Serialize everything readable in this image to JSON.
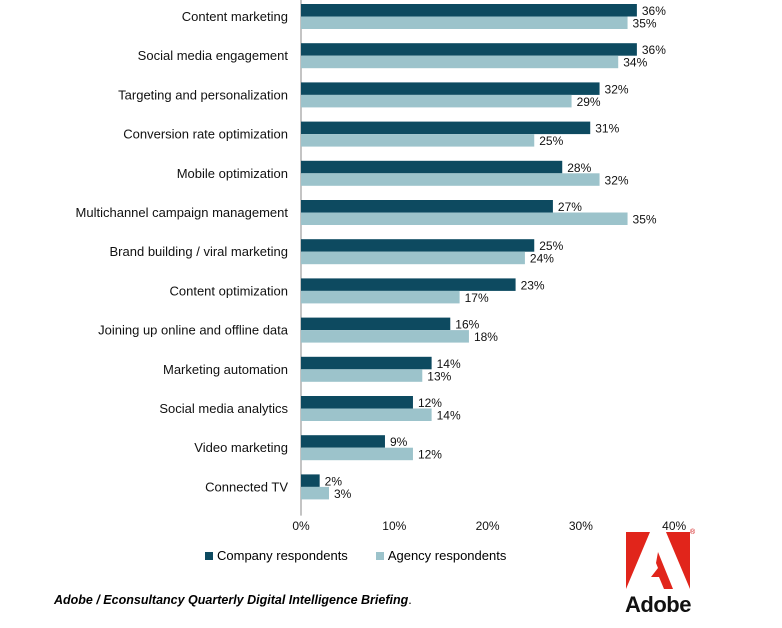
{
  "chart_data": {
    "type": "bar",
    "orientation": "horizontal",
    "categories": [
      "Content marketing",
      "Social media engagement",
      "Targeting and personalization",
      "Conversion rate optimization",
      "Mobile optimization",
      "Multichannel campaign management",
      "Brand building / viral marketing",
      "Content optimization",
      "Joining up online and offline data",
      "Marketing automation",
      "Social media analytics",
      "Video marketing",
      "Connected TV"
    ],
    "series": [
      {
        "name": "Company respondents",
        "color": "#0d4a60",
        "values": [
          36,
          36,
          32,
          31,
          28,
          27,
          25,
          23,
          16,
          14,
          12,
          9,
          2
        ]
      },
      {
        "name": "Agency respondents",
        "color": "#9cc3cb",
        "values": [
          35,
          34,
          29,
          25,
          32,
          35,
          24,
          17,
          18,
          13,
          14,
          12,
          3
        ]
      }
    ],
    "value_suffix": "%",
    "xlim": [
      0,
      40
    ],
    "xticks": [
      "0%",
      "10%",
      "20%",
      "30%",
      "40%"
    ],
    "grid": false,
    "legend_position": "bottom"
  },
  "legend": {
    "company": "Company respondents",
    "agency": "Agency respondents"
  },
  "footer": {
    "source": "Adobe / Econsultancy  Quarterly  Digital  Intelligence  Briefing",
    "period": "."
  },
  "logo": {
    "word": "Adobe",
    "registered": "®",
    "color": "#e1251b"
  }
}
